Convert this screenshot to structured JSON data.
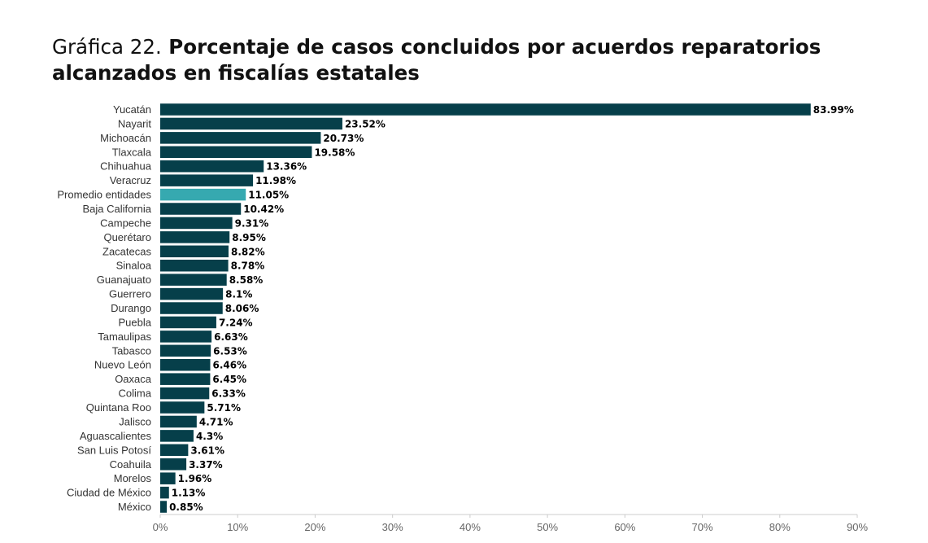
{
  "header": {
    "title_prefix": "Gráfica 22.",
    "title_main": "Porcentaje de casos concluidos por acuerdos reparatorios alcanzados en fiscalías estatales"
  },
  "colors": {
    "bar": "#063f4a",
    "highlight": "#36a9b0"
  },
  "chart_data": {
    "type": "bar",
    "orientation": "horizontal",
    "title": "Porcentaje de casos concluidos por acuerdos reparatorios alcanzados en fiscalías estatales",
    "xlabel": "",
    "ylabel": "",
    "xlim": [
      0,
      90
    ],
    "xticks": [
      0,
      10,
      20,
      30,
      40,
      50,
      60,
      70,
      80,
      90
    ],
    "xtick_labels": [
      "0%",
      "10%",
      "20%",
      "30%",
      "40%",
      "50%",
      "60%",
      "70%",
      "80%",
      "90%"
    ],
    "grid": false,
    "categories": [
      "Yucatán",
      "Nayarit",
      "Michoacán",
      "Tlaxcala",
      "Chihuahua",
      "Veracruz",
      "Promedio entidades",
      "Baja California",
      "Campeche",
      "Querétaro",
      "Zacatecas",
      "Sinaloa",
      "Guanajuato",
      "Guerrero",
      "Durango",
      "Puebla",
      "Tamaulipas",
      "Tabasco",
      "Nuevo León",
      "Oaxaca",
      "Colima",
      "Quintana Roo",
      "Jalisco",
      "Aguascalientes",
      "San Luis Potosí",
      "Coahuila",
      "Morelos",
      "Ciudad de México",
      "México"
    ],
    "values": [
      83.99,
      23.52,
      20.73,
      19.58,
      13.36,
      11.98,
      11.05,
      10.42,
      9.31,
      8.95,
      8.82,
      8.78,
      8.58,
      8.1,
      8.06,
      7.24,
      6.63,
      6.53,
      6.46,
      6.45,
      6.33,
      5.71,
      4.71,
      4.3,
      3.61,
      3.37,
      1.96,
      1.13,
      0.85
    ],
    "value_labels": [
      "83.99%",
      "23.52%",
      "20.73%",
      "19.58%",
      "13.36%",
      "11.98%",
      "11.05%",
      "10.42%",
      "9.31%",
      "8.95%",
      "8.82%",
      "8.78%",
      "8.58%",
      "8.1%",
      "8.06%",
      "7.24%",
      "6.63%",
      "6.53%",
      "6.46%",
      "6.45%",
      "6.33%",
      "5.71%",
      "4.71%",
      "4.3%",
      "3.61%",
      "3.37%",
      "1.96%",
      "1.13%",
      "0.85%"
    ],
    "highlight": [
      "Promedio entidades"
    ]
  }
}
